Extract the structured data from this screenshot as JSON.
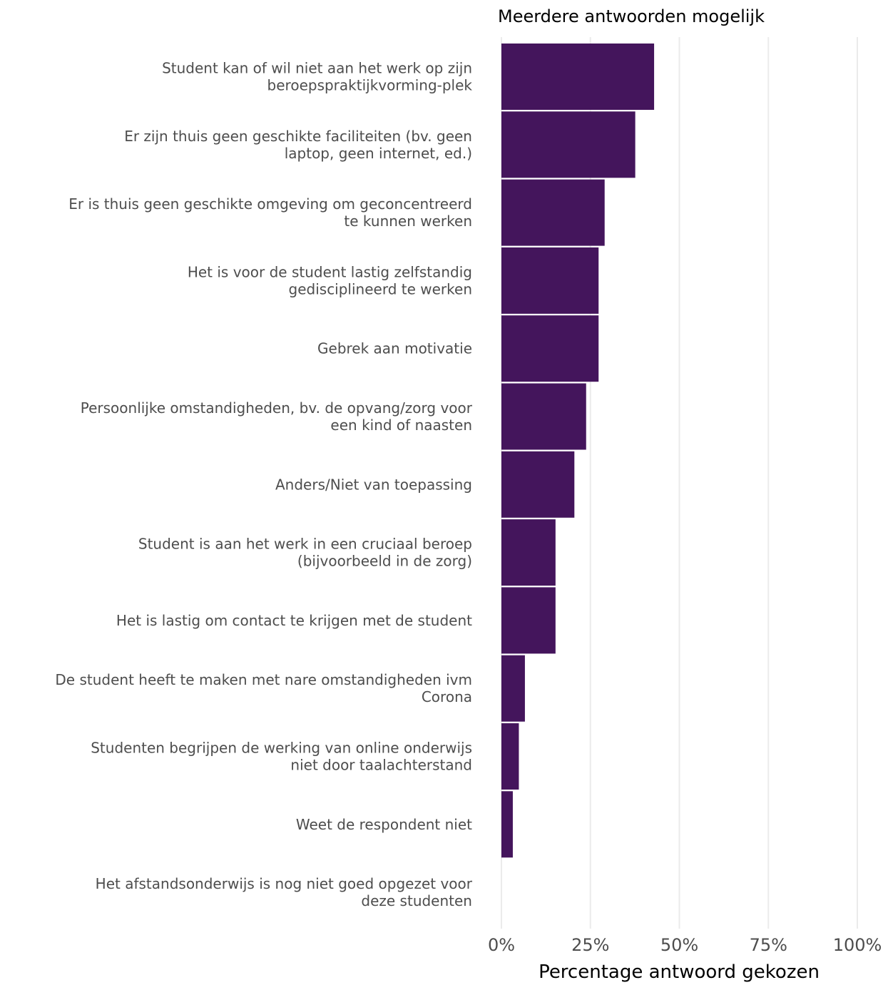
{
  "chart_data": {
    "type": "bar",
    "orientation": "horizontal",
    "title": "Meerdere antwoorden mogelijk",
    "xlabel": "Percentage antwoord gekozen",
    "ylabel": "",
    "xlim": [
      0,
      100
    ],
    "x_ticks": [
      0,
      25,
      50,
      75,
      100
    ],
    "x_tick_labels": [
      "0%",
      "25%",
      "50%",
      "75%",
      "100%"
    ],
    "grid": "vertical major gridlines",
    "legend": "none",
    "bar_color": "#44155C",
    "categories": [
      [
        "Student kan of wil niet aan het werk op zijn",
        "beroepspraktijkvorming-plek"
      ],
      [
        "Er zijn thuis geen geschikte faciliteiten (bv. geen",
        "laptop, geen internet, ed.)"
      ],
      [
        "Er is thuis geen geschikte omgeving om geconcentreerd",
        "te kunnen werken"
      ],
      [
        "Het is voor de student lastig zelfstandig",
        "gedisciplineerd te werken"
      ],
      [
        "Gebrek aan motivatie"
      ],
      [
        "Persoonlijke omstandigheden, bv. de opvang/zorg voor",
        "een kind of naasten"
      ],
      [
        "Anders/Niet van toepassing"
      ],
      [
        "Student is aan het werk in een cruciaal beroep",
        "(bijvoorbeeld in de zorg)"
      ],
      [
        "Het is lastig om contact te krijgen met de student"
      ],
      [
        "De student heeft te maken met nare omstandigheden ivm",
        "Corona"
      ],
      [
        "Studenten begrijpen de werking van online onderwijs",
        "niet door taalachterstand"
      ],
      [
        "Weet de respondent niet"
      ],
      [
        "Het afstandsonderwijs is nog niet goed opgezet voor",
        "deze studenten"
      ]
    ],
    "values": [
      42.9,
      37.6,
      29.0,
      27.3,
      27.3,
      23.8,
      20.5,
      15.2,
      15.2,
      6.6,
      4.9,
      3.2,
      0.0
    ]
  }
}
